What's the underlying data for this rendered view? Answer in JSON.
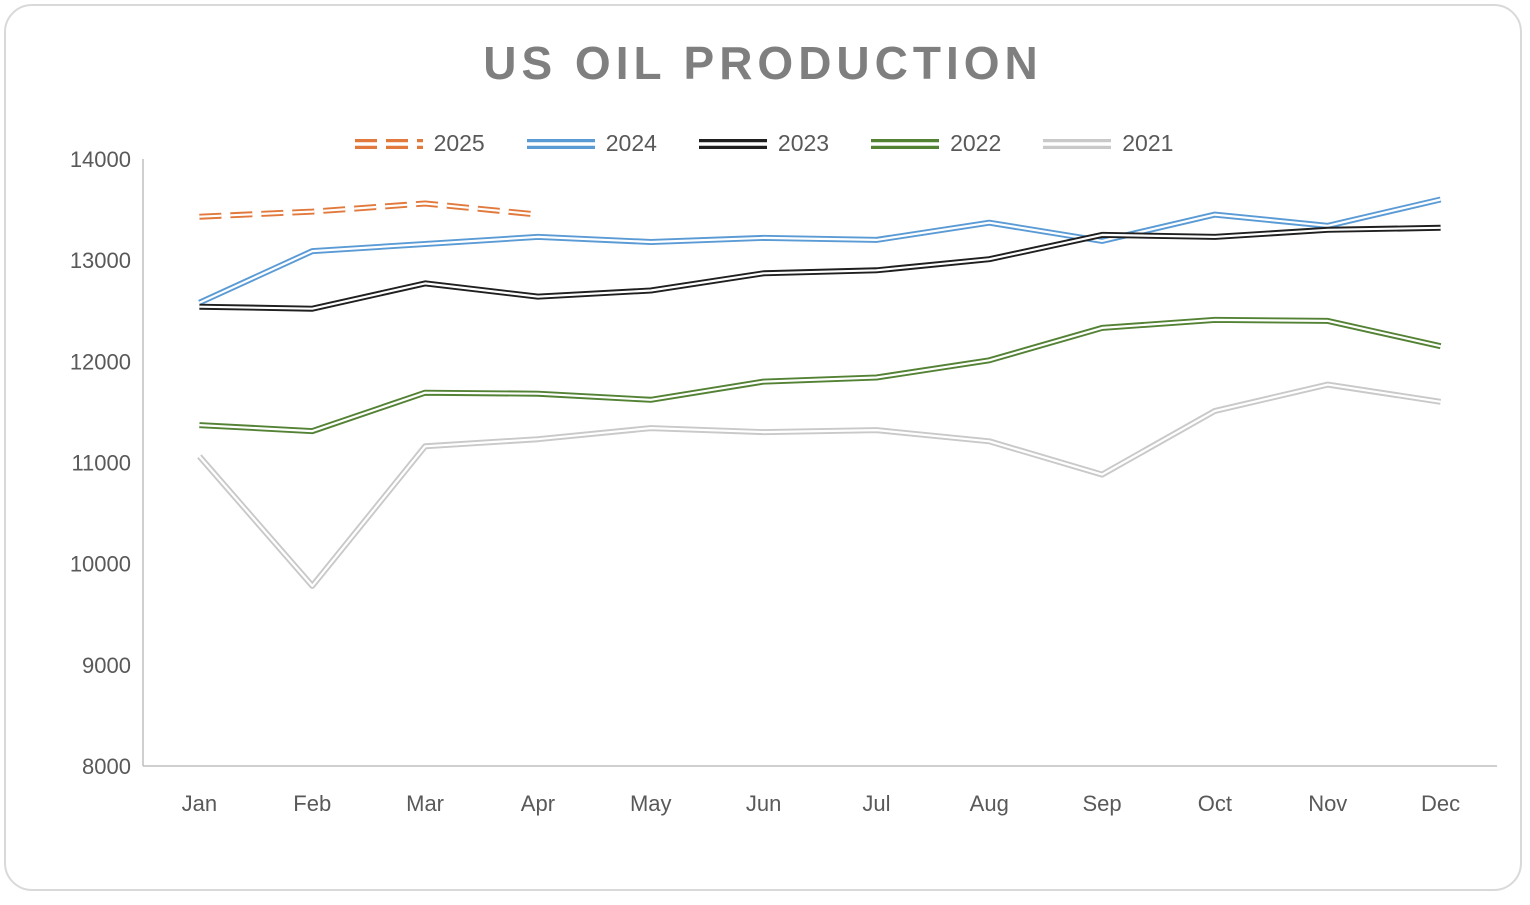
{
  "chart_data": {
    "type": "line",
    "title": "US OIL PRODUCTION",
    "categories": [
      "Jan",
      "Feb",
      "Mar",
      "Apr",
      "May",
      "Jun",
      "Jul",
      "Aug",
      "Sep",
      "Oct",
      "Nov",
      "Dec"
    ],
    "series": [
      {
        "name": "2025",
        "color": "#e2793c",
        "dashed": true,
        "values": [
          13430,
          13480,
          13560,
          13450,
          null,
          null,
          null,
          null,
          null,
          null,
          null,
          null
        ]
      },
      {
        "name": "2024",
        "color": "#5b9bd5",
        "dashed": false,
        "values": [
          12580,
          13090,
          13160,
          13230,
          13180,
          13220,
          13200,
          13370,
          13190,
          13450,
          13340,
          13600
        ]
      },
      {
        "name": "2023",
        "color": "#1f1f1f",
        "dashed": false,
        "values": [
          12540,
          12520,
          12770,
          12640,
          12700,
          12870,
          12900,
          13010,
          13250,
          13230,
          13300,
          13320
        ]
      },
      {
        "name": "2022",
        "color": "#548235",
        "dashed": false,
        "values": [
          11370,
          11310,
          11690,
          11680,
          11620,
          11800,
          11840,
          12010,
          12330,
          12410,
          12400,
          12150
        ]
      },
      {
        "name": "2021",
        "color": "#c9c9c9",
        "dashed": false,
        "values": [
          11060,
          9780,
          11160,
          11230,
          11340,
          11300,
          11320,
          11210,
          10880,
          11510,
          11770,
          11600
        ]
      }
    ],
    "ylim": [
      8000,
      14000
    ],
    "yticks": [
      8000,
      9000,
      10000,
      11000,
      12000,
      13000,
      14000
    ],
    "legend_position": "top",
    "grid": false,
    "axis_line_color": "#bfbfbf",
    "tick_text_color": "#595959",
    "line_style": "double-line"
  }
}
